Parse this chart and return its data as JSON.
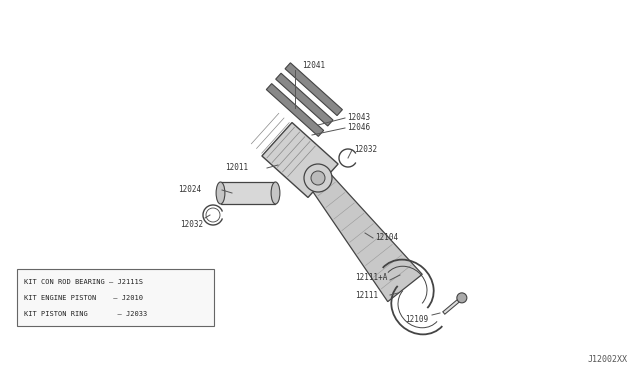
{
  "bg_color": "#ffffff",
  "line_color": "#444444",
  "diagram_id": "J12002XX",
  "legend_lines": [
    "KIT CON ROD BEARING – J2111S",
    "KIT ENGINE PISTON    – J2010",
    "KIT PISTON RING       – J2033"
  ]
}
